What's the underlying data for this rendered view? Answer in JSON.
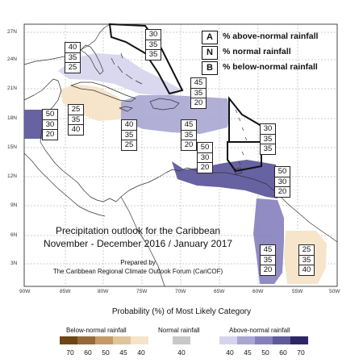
{
  "key": [
    {
      "letter": "A",
      "label": "% above-normal rainfall"
    },
    {
      "letter": "N",
      "label": "% normal rainfall"
    },
    {
      "letter": "B",
      "label": "% below-normal rainfall"
    }
  ],
  "probability_boxes": [
    {
      "above": "40",
      "normal": "35",
      "below": "25"
    },
    {
      "above": "30",
      "normal": "35",
      "below": "35"
    },
    {
      "above": "45",
      "normal": "35",
      "below": "20"
    },
    {
      "above": "50",
      "normal": "30",
      "below": "20"
    },
    {
      "above": "25",
      "normal": "35",
      "below": "40"
    },
    {
      "above": "40",
      "normal": "35",
      "below": "25"
    },
    {
      "above": "45",
      "normal": "35",
      "below": "20"
    },
    {
      "above": "50",
      "normal": "30",
      "below": "20"
    },
    {
      "above": "30",
      "normal": "35",
      "below": "35"
    },
    {
      "above": "50",
      "normal": "30",
      "below": "20"
    },
    {
      "above": "45",
      "normal": "35",
      "below": "20"
    },
    {
      "above": "25",
      "normal": "35",
      "below": "40"
    }
  ],
  "lat_ticks": [
    "27N",
    "24N",
    "21N",
    "18N",
    "15N",
    "12N",
    "9N",
    "6N",
    "3N"
  ],
  "lon_ticks": [
    "90W",
    "85W",
    "80W",
    "75W",
    "70W",
    "65W",
    "60W",
    "55W",
    "50W"
  ],
  "title_line1": "Precipitation outlook for the Caribbean",
  "title_line2": "November - December 2016 / January 2017",
  "prepared_by": "Prepared by",
  "prepared_org": "The Caribbean Regional Climate Outlook Forum (CariCOF)",
  "legend": {
    "title": "Probability (%) of Most Likely Category",
    "below_label": "Below-normal rainfall",
    "normal_label": "Normal rainfall",
    "above_label": "Above-normal rainfall",
    "below_values": [
      "70",
      "60",
      "50",
      "45",
      "40"
    ],
    "normal_values": [
      "40"
    ],
    "above_values": [
      "40",
      "45",
      "50",
      "60",
      "70"
    ]
  },
  "colors": {
    "below": [
      "#6e4514",
      "#966a38",
      "#c49a66",
      "#e0c49a",
      "#f6e4c8"
    ],
    "normal": "#c8c8c8",
    "above": [
      "#d6d4ec",
      "#a9a6d2",
      "#8580bc",
      "#5f5a9c",
      "#2d2666"
    ]
  }
}
